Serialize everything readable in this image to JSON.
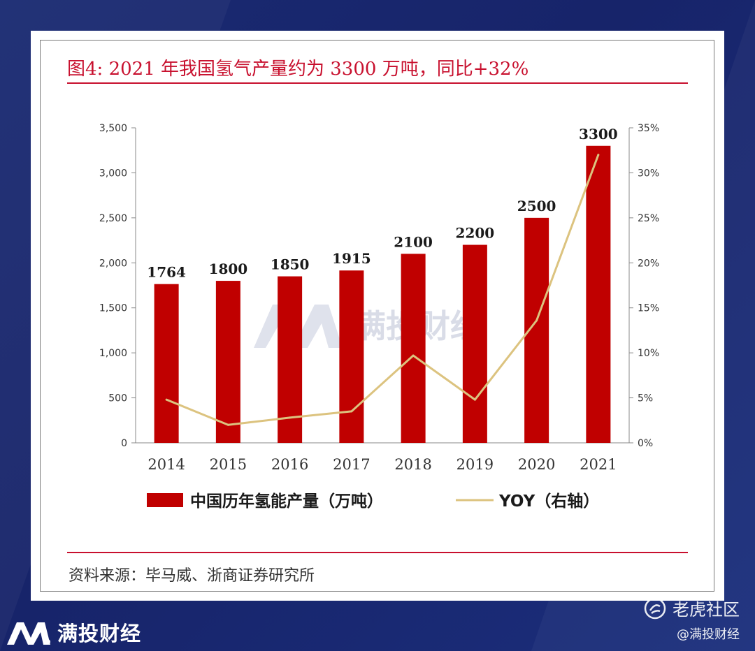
{
  "chart_data": {
    "type": "bar",
    "title": "图4:  2021 年我国氢气产量约为 3300 万吨，同比+32%",
    "categories": [
      "2014",
      "2015",
      "2016",
      "2017",
      "2018",
      "2019",
      "2020",
      "2021"
    ],
    "series": [
      {
        "name": "中国历年氢能产量（万吨）",
        "type": "bar",
        "axis": "left",
        "color": "#c00000",
        "values": [
          1764,
          1800,
          1850,
          1915,
          2100,
          2200,
          2500,
          3300
        ],
        "labels": [
          "1764",
          "1800",
          "1850",
          "1915",
          "2100",
          "2200",
          "2500",
          "3300"
        ]
      },
      {
        "name": "YOY（右轴）",
        "type": "line",
        "axis": "right",
        "color": "#dcc37f",
        "values": [
          4.8,
          2.0,
          2.8,
          3.5,
          9.7,
          4.8,
          13.6,
          32.0
        ]
      }
    ],
    "y_left": {
      "ylim": [
        0,
        3500
      ],
      "ticks": [
        0,
        500,
        1000,
        1500,
        2000,
        2500,
        3000,
        3500
      ],
      "tick_labels": [
        "0",
        "500",
        "1,000",
        "1,500",
        "2,000",
        "2,500",
        "3,000",
        "3,500"
      ]
    },
    "y_right": {
      "ylim": [
        0,
        35
      ],
      "ticks": [
        0,
        5,
        10,
        15,
        20,
        25,
        30,
        35
      ],
      "tick_labels": [
        "0%",
        "5%",
        "10%",
        "15%",
        "20%",
        "25%",
        "30%",
        "35%"
      ]
    },
    "legend_position": "bottom",
    "grid": false,
    "source": "资料来源：毕马威、浙商证券研究所",
    "watermark": "满投财经"
  },
  "footer": {
    "brand": "满投财经",
    "platform": "老虎社区",
    "handle": "@满投财经"
  },
  "colors": {
    "background": "#1a2a72",
    "accent_red": "#c8102e",
    "bar": "#c00000",
    "line": "#dcc37f"
  }
}
